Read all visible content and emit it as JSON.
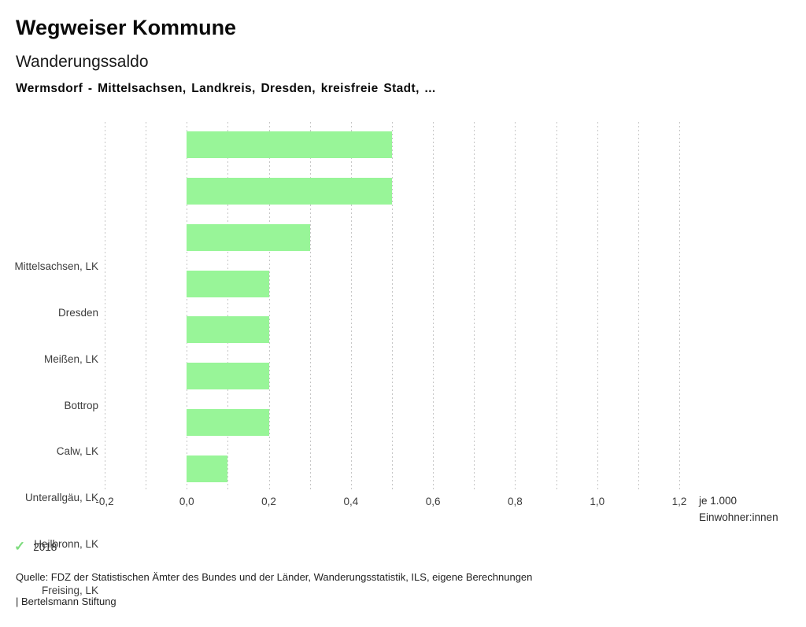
{
  "header": {
    "app_title": "Wegweiser Kommune",
    "chart_title": "Wanderungssaldo",
    "chart_subtitle": "Wermsdorf - Mittelsachsen, Landkreis, Dresden, kreisfreie Stadt, ..."
  },
  "chart_data": {
    "type": "bar",
    "orientation": "horizontal",
    "categories": [
      "Mittelsachsen, LK",
      "Dresden",
      "Meißen, LK",
      "Bottrop",
      "Calw, LK",
      "Unterallgäu, LK",
      "Heilbronn, LK",
      "Freising, LK"
    ],
    "series": [
      {
        "name": "2018",
        "color": "#98f598",
        "values": [
          0.5,
          0.5,
          0.3,
          0.2,
          0.2,
          0.2,
          0.2,
          0.1
        ]
      }
    ],
    "xlim": [
      -0.2,
      1.2
    ],
    "grid_step": 0.1,
    "grid_on": true,
    "tick_values": [
      -0.2,
      0.0,
      0.2,
      0.4,
      0.6,
      0.8,
      1.0,
      1.2
    ],
    "tick_labels": [
      "-0,2",
      "0,0",
      "0,2",
      "0,4",
      "0,6",
      "0,8",
      "1,0",
      "1,2"
    ],
    "xlabel_lines": [
      "je 1.000",
      "Einwohner:innen"
    ],
    "legend": {
      "position": "bottom-left",
      "marker": "check",
      "check_glyph": "✓",
      "check_color": "#7edc7e",
      "label": "2018"
    },
    "colors": {
      "bar": "#98f598",
      "gridline": "#c6c6c6"
    }
  },
  "footer": {
    "source": "Quelle: FDZ der Statistischen Ämter des Bundes und der Länder, Wanderungsstatistik, ILS, eigene Berechnungen",
    "attribution": "| Bertelsmann Stiftung"
  }
}
